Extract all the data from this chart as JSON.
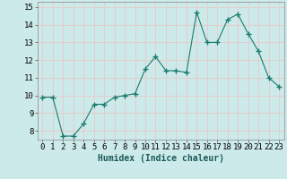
{
  "x": [
    0,
    1,
    2,
    3,
    4,
    5,
    6,
    7,
    8,
    9,
    10,
    11,
    12,
    13,
    14,
    15,
    16,
    17,
    18,
    19,
    20,
    21,
    22,
    23
  ],
  "y": [
    9.9,
    9.9,
    7.7,
    7.7,
    8.4,
    9.5,
    9.5,
    9.9,
    10.0,
    10.1,
    11.5,
    12.2,
    11.4,
    11.4,
    11.3,
    14.7,
    13.0,
    13.0,
    14.3,
    14.6,
    13.5,
    12.5,
    11.0,
    10.5
  ],
  "line_color": "#1a7a6e",
  "marker": "+",
  "marker_size": 4,
  "background_color": "#cdeaea",
  "grid_color": "#e8c8c8",
  "xlabel": "Humidex (Indice chaleur)",
  "xlabel_fontsize": 7,
  "tick_fontsize": 6.5,
  "ylim": [
    7.5,
    15.3
  ],
  "xlim": [
    -0.5,
    23.5
  ],
  "yticks": [
    8,
    9,
    10,
    11,
    12,
    13,
    14,
    15
  ],
  "xticks": [
    0,
    1,
    2,
    3,
    4,
    5,
    6,
    7,
    8,
    9,
    10,
    11,
    12,
    13,
    14,
    15,
    16,
    17,
    18,
    19,
    20,
    21,
    22,
    23
  ]
}
